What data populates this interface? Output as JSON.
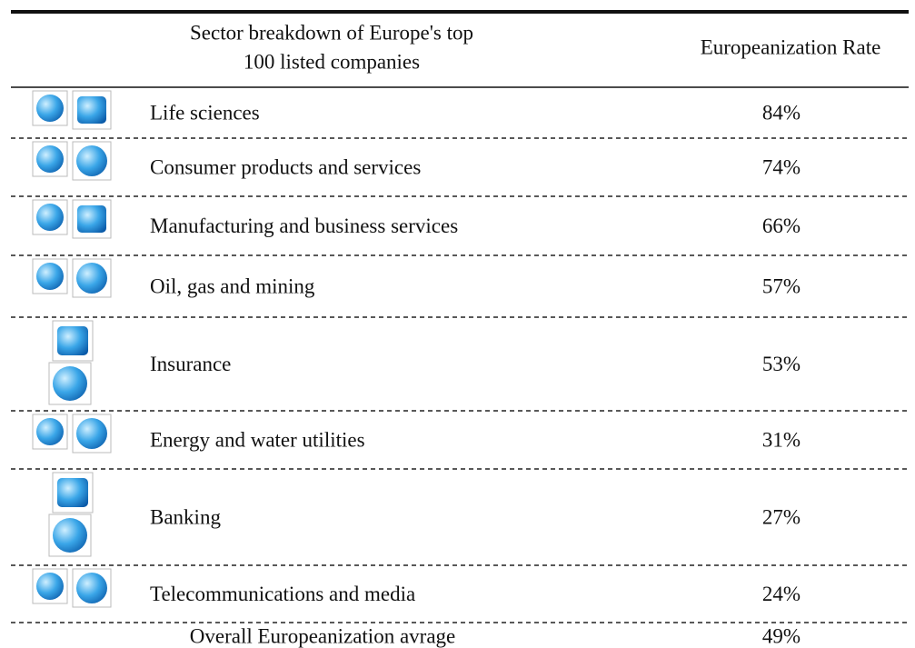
{
  "table": {
    "header": [
      "Sector breakdown of Europe's top",
      "100 listed companies",
      "Europeanization Rate"
    ],
    "rows": [
      {
        "sector": "Life sciences",
        "rate": "84%"
      },
      {
        "sector": "Consumer products and services",
        "rate": "74%"
      },
      {
        "sector": "Manufacturing and business services",
        "rate": "66%"
      },
      {
        "sector": "Oil, gas and mining",
        "rate": "57%"
      },
      {
        "sector": "Insurance",
        "rate": "53%"
      },
      {
        "sector": "Energy and water utilities",
        "rate": "31%"
      },
      {
        "sector": "Banking",
        "rate": "27%"
      },
      {
        "sector": "Telecommunications and media",
        "rate": "24%"
      }
    ],
    "footer": {
      "label": "Overall Europeanization avrage",
      "rate": "49%"
    }
  }
}
